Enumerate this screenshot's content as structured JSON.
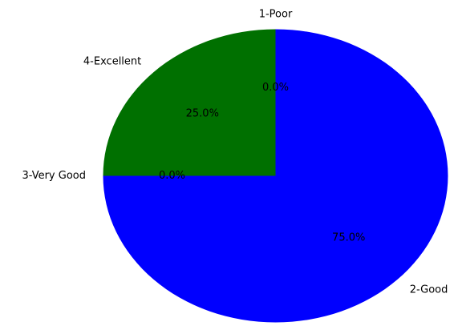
{
  "chart_data": {
    "type": "pie",
    "title": "",
    "categories": [
      "1-Poor",
      "2-Good",
      "3-Very Good",
      "4-Excellent"
    ],
    "values": [
      0,
      75,
      0,
      25
    ],
    "percent_labels": [
      "0.0%",
      "75.0%",
      "0.0%",
      "25.0%"
    ],
    "colors": [
      "#ff0000",
      "#0000ff",
      "#ffff00",
      "#007000"
    ],
    "start_angle_deg": 90,
    "direction": "clockwise",
    "legend": "none"
  }
}
